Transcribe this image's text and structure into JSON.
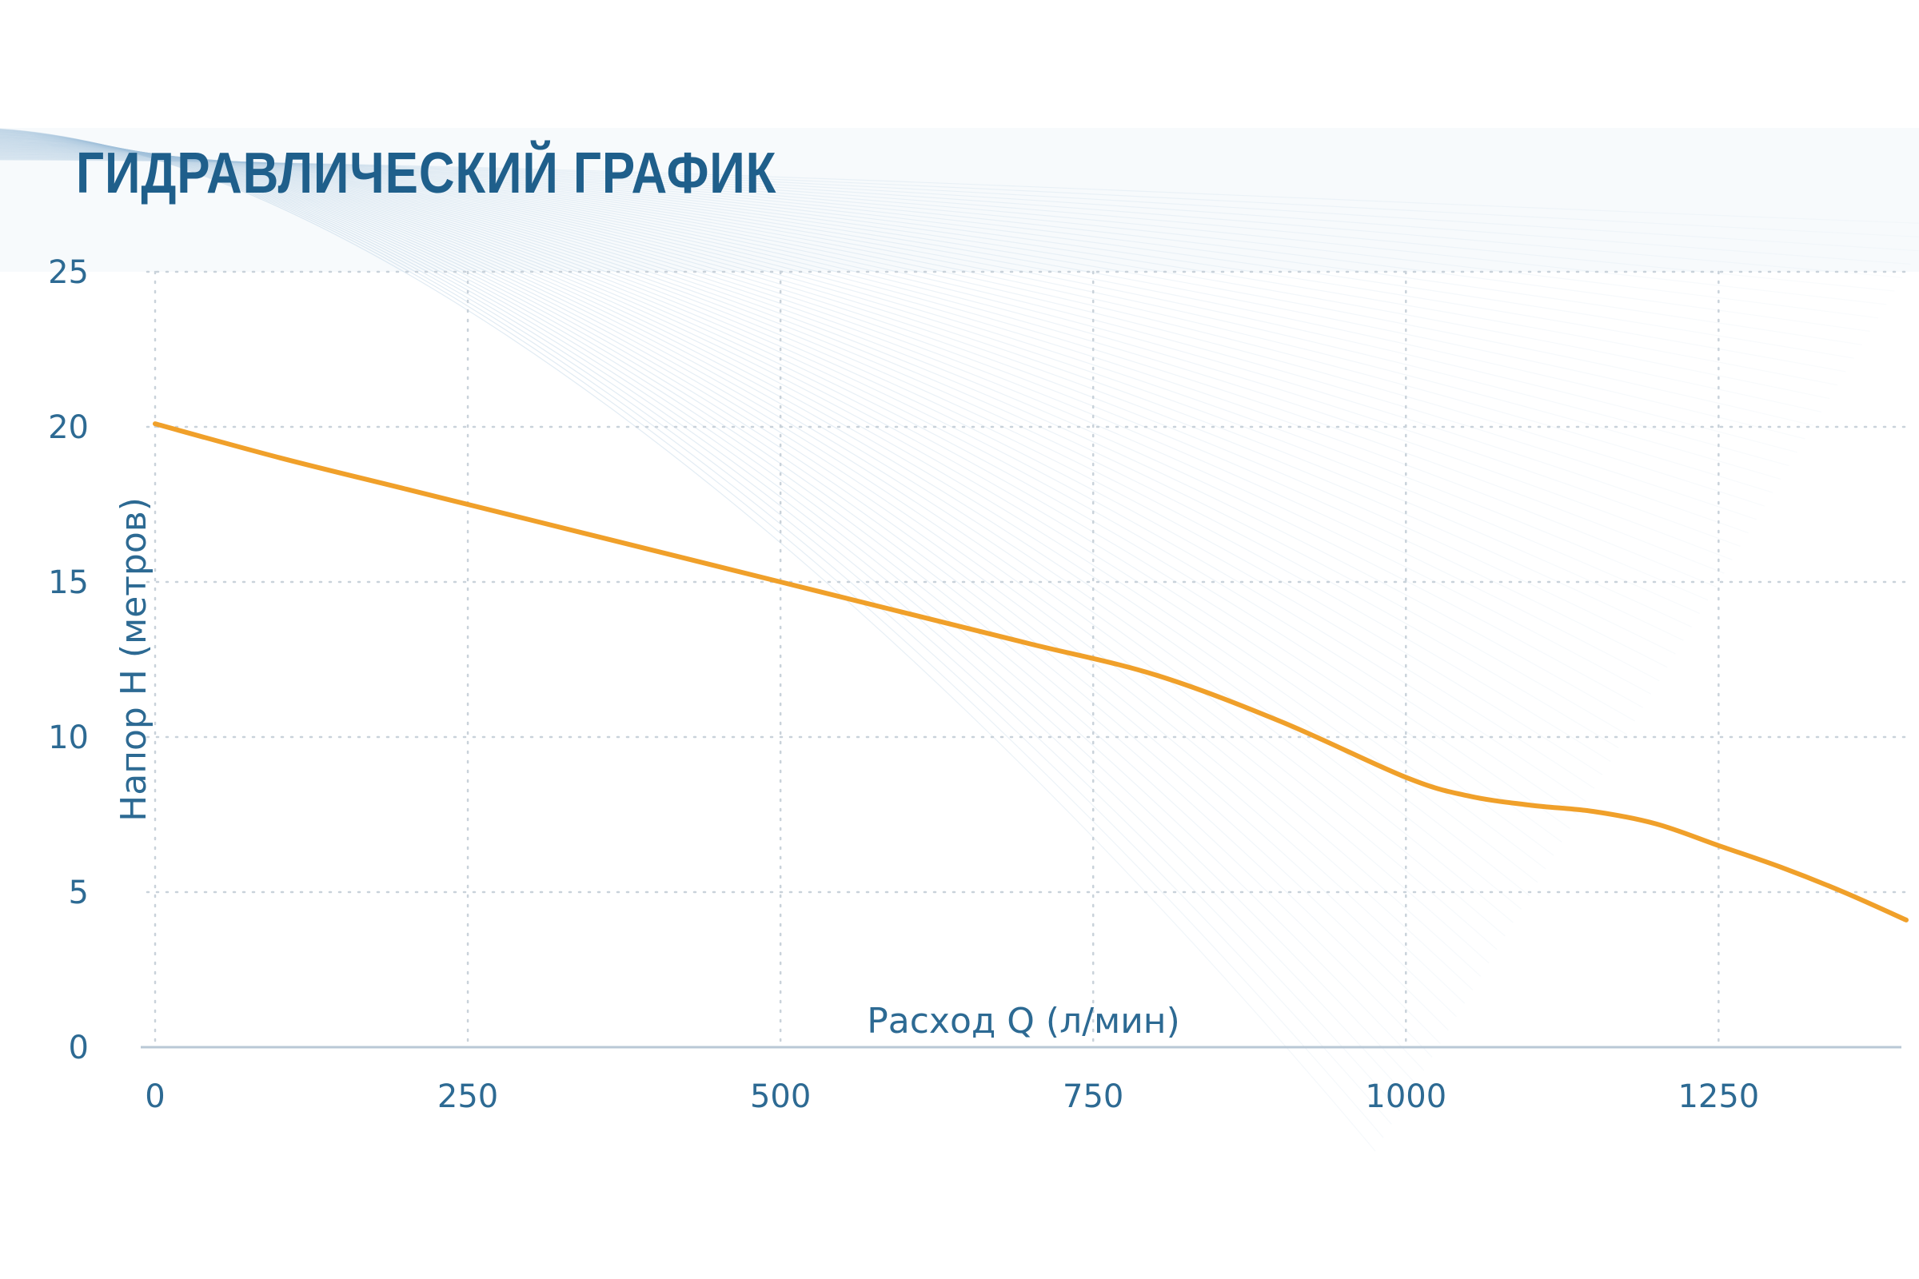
{
  "colors": {
    "title": "#1f5f8b",
    "text": "#2d6a93",
    "line": "#f0a02a",
    "grid": "#c9d2da",
    "axis": "#b9c8d6",
    "wave": "#9fbfd9"
  },
  "chart_data": {
    "type": "line",
    "title": "ГИДРАВЛИЧЕСКИЙ ГРАФИК",
    "xlabel": "Расход Q (л/мин)",
    "ylabel": "Напор Н (метров)",
    "xlim": [
      0,
      1400
    ],
    "ylim": [
      0,
      25
    ],
    "xticks": [
      0,
      250,
      500,
      750,
      1000,
      1250
    ],
    "yticks": [
      0,
      5,
      10,
      15,
      20,
      25
    ],
    "grid": true,
    "grid_style": "dotted",
    "series": [
      {
        "x": [
          0,
          100,
          200,
          300,
          400,
          500,
          600,
          700,
          800,
          900,
          1000,
          1050,
          1100,
          1150,
          1200,
          1250,
          1300,
          1350,
          1400
        ],
        "y": [
          20.1,
          19.0,
          18.0,
          17.0,
          16.0,
          15.0,
          14.0,
          13.0,
          12.0,
          10.5,
          8.7,
          8.1,
          7.8,
          7.6,
          7.2,
          6.5,
          5.8,
          5.0,
          4.1
        ]
      }
    ]
  }
}
